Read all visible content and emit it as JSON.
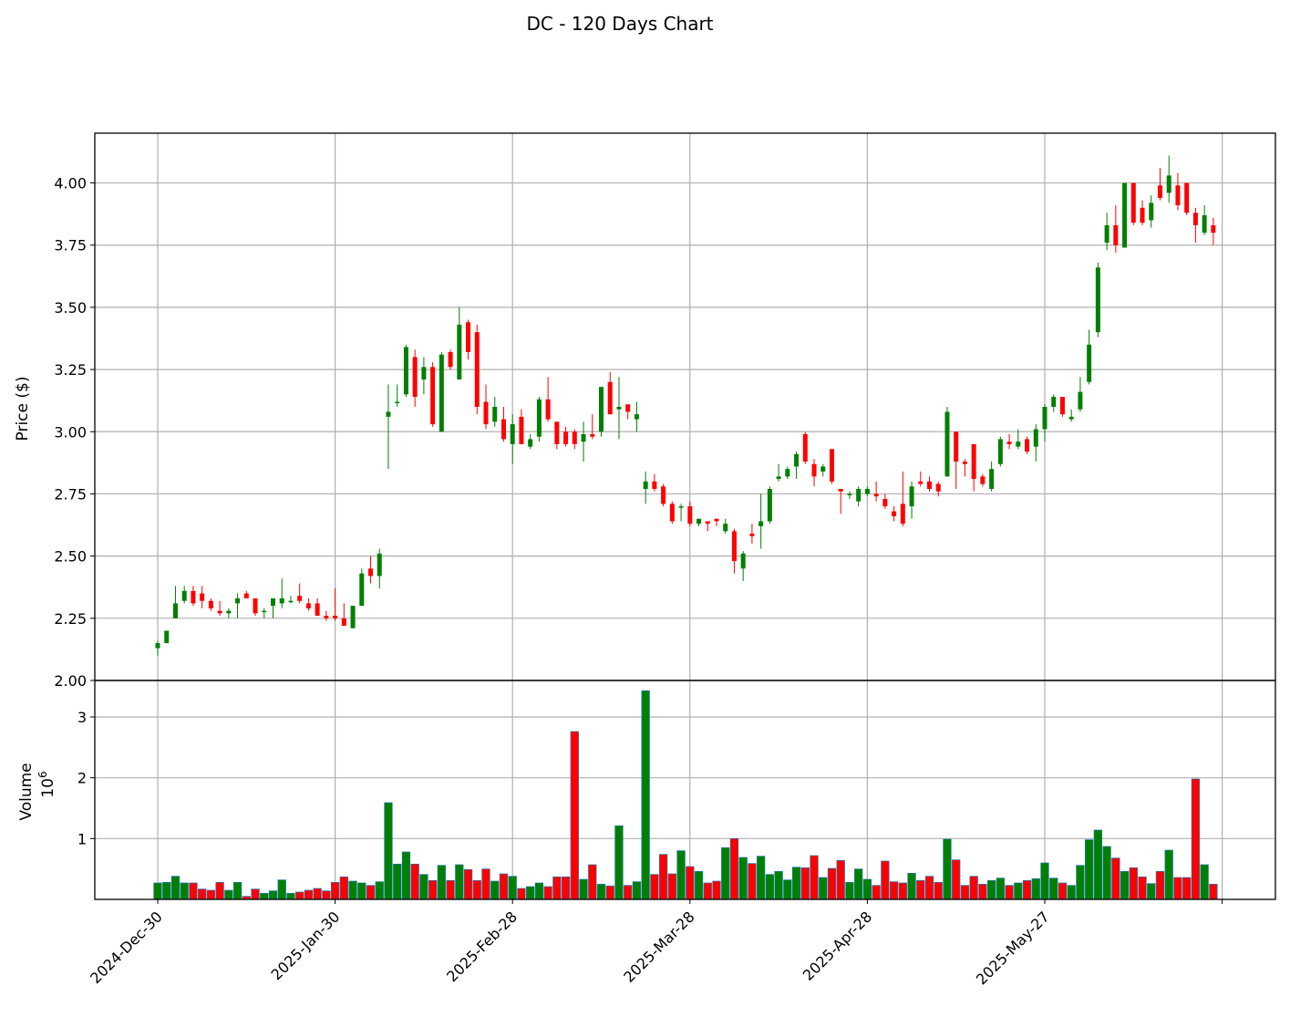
{
  "chart_data": {
    "type": "candlestick",
    "title": "DC - 120 Days Chart",
    "ylabel_price": "Price ($)",
    "ylabel_volume": "Volume",
    "volume_multiplier_label": "10^6",
    "volume_multiplier_base": "10",
    "volume_multiplier_exp": "6",
    "price_ylim": [
      2.0,
      4.2
    ],
    "price_ticks": [
      "2.00",
      "2.25",
      "2.50",
      "2.75",
      "3.00",
      "3.25",
      "3.50",
      "3.75",
      "4.00"
    ],
    "volume_ylim": [
      0,
      3.6
    ],
    "volume_ticks": [
      "1",
      "2",
      "3"
    ],
    "x_tick_labels": [
      {
        "label": "2024-Dec-30",
        "index": 0
      },
      {
        "label": "2025-Jan-30",
        "index": 20
      },
      {
        "label": "2025-Feb-28",
        "index": 40
      },
      {
        "label": "2025-Mar-28",
        "index": 60
      },
      {
        "label": "2025-Apr-28",
        "index": 80
      },
      {
        "label": "2025-May-27",
        "index": 100
      }
    ],
    "grid": true,
    "up_color": "#008000",
    "down_color": "#ff0000",
    "ohlc": [
      [
        2.13,
        2.16,
        2.1,
        2.15
      ],
      [
        2.15,
        2.2,
        2.15,
        2.2
      ],
      [
        2.25,
        2.38,
        2.25,
        2.31
      ],
      [
        2.32,
        2.38,
        2.31,
        2.36
      ],
      [
        2.36,
        2.38,
        2.3,
        2.31
      ],
      [
        2.35,
        2.38,
        2.29,
        2.32
      ],
      [
        2.32,
        2.33,
        2.28,
        2.29
      ],
      [
        2.28,
        2.32,
        2.26,
        2.27
      ],
      [
        2.27,
        2.29,
        2.25,
        2.28
      ],
      [
        2.31,
        2.35,
        2.25,
        2.33
      ],
      [
        2.35,
        2.36,
        2.33,
        2.33
      ],
      [
        2.33,
        2.33,
        2.26,
        2.27
      ],
      [
        2.28,
        2.29,
        2.25,
        2.28
      ],
      [
        2.3,
        2.33,
        2.25,
        2.33
      ],
      [
        2.31,
        2.41,
        2.29,
        2.33
      ],
      [
        2.32,
        2.34,
        2.31,
        2.32
      ],
      [
        2.34,
        2.39,
        2.31,
        2.32
      ],
      [
        2.31,
        2.33,
        2.28,
        2.29
      ],
      [
        2.31,
        2.33,
        2.26,
        2.26
      ],
      [
        2.26,
        2.28,
        2.24,
        2.25
      ],
      [
        2.26,
        2.37,
        2.24,
        2.25
      ],
      [
        2.25,
        2.31,
        2.22,
        2.22
      ],
      [
        2.21,
        2.3,
        2.21,
        2.3
      ],
      [
        2.3,
        2.45,
        2.3,
        2.43
      ],
      [
        2.45,
        2.5,
        2.39,
        2.42
      ],
      [
        2.42,
        2.53,
        2.37,
        2.51
      ],
      [
        3.06,
        3.19,
        2.85,
        3.08
      ],
      [
        3.12,
        3.19,
        3.1,
        3.12
      ],
      [
        3.15,
        3.35,
        3.14,
        3.34
      ],
      [
        3.3,
        3.33,
        3.1,
        3.14
      ],
      [
        3.21,
        3.3,
        3.15,
        3.26
      ],
      [
        3.26,
        3.28,
        3.02,
        3.03
      ],
      [
        3.0,
        3.32,
        3.0,
        3.31
      ],
      [
        3.32,
        3.33,
        3.25,
        3.26
      ],
      [
        3.21,
        3.5,
        3.21,
        3.43
      ],
      [
        3.44,
        3.45,
        3.29,
        3.32
      ],
      [
        3.4,
        3.43,
        3.07,
        3.1
      ],
      [
        3.12,
        3.19,
        3.01,
        3.03
      ],
      [
        3.04,
        3.14,
        3.02,
        3.1
      ],
      [
        3.05,
        3.1,
        2.96,
        2.97
      ],
      [
        2.95,
        3.07,
        2.87,
        3.03
      ],
      [
        3.06,
        3.09,
        2.95,
        2.95
      ],
      [
        2.94,
        2.99,
        2.93,
        2.97
      ],
      [
        2.98,
        3.14,
        2.96,
        3.13
      ],
      [
        3.13,
        3.22,
        3.04,
        3.05
      ],
      [
        3.04,
        3.04,
        2.93,
        2.95
      ],
      [
        3.0,
        3.02,
        2.94,
        2.95
      ],
      [
        3.0,
        3.01,
        2.93,
        2.95
      ],
      [
        2.96,
        3.04,
        2.88,
        2.99
      ],
      [
        2.99,
        3.07,
        2.97,
        2.98
      ],
      [
        3.0,
        3.18,
        2.98,
        3.18
      ],
      [
        3.2,
        3.24,
        3.07,
        3.07
      ],
      [
        3.09,
        3.22,
        2.97,
        3.1
      ],
      [
        3.11,
        3.11,
        3.05,
        3.08
      ],
      [
        3.05,
        3.12,
        3.0,
        3.07
      ],
      [
        2.77,
        2.84,
        2.71,
        2.8
      ],
      [
        2.8,
        2.83,
        2.76,
        2.77
      ],
      [
        2.78,
        2.79,
        2.7,
        2.71
      ],
      [
        2.71,
        2.72,
        2.63,
        2.64
      ],
      [
        2.7,
        2.71,
        2.64,
        2.7
      ],
      [
        2.7,
        2.72,
        2.62,
        2.63
      ],
      [
        2.63,
        2.65,
        2.62,
        2.65
      ],
      [
        2.64,
        2.64,
        2.6,
        2.63
      ],
      [
        2.65,
        2.65,
        2.62,
        2.64
      ],
      [
        2.6,
        2.65,
        2.59,
        2.63
      ],
      [
        2.6,
        2.61,
        2.43,
        2.48
      ],
      [
        2.45,
        2.52,
        2.4,
        2.51
      ],
      [
        2.59,
        2.63,
        2.55,
        2.58
      ],
      [
        2.62,
        2.75,
        2.53,
        2.64
      ],
      [
        2.64,
        2.78,
        2.63,
        2.77
      ],
      [
        2.81,
        2.87,
        2.8,
        2.82
      ],
      [
        2.82,
        2.86,
        2.81,
        2.85
      ],
      [
        2.86,
        2.92,
        2.81,
        2.91
      ],
      [
        2.99,
        3.0,
        2.87,
        2.88
      ],
      [
        2.87,
        2.89,
        2.78,
        2.82
      ],
      [
        2.84,
        2.87,
        2.82,
        2.86
      ],
      [
        2.93,
        2.93,
        2.79,
        2.8
      ],
      [
        2.77,
        2.77,
        2.67,
        2.76
      ],
      [
        2.75,
        2.76,
        2.73,
        2.75
      ],
      [
        2.72,
        2.78,
        2.7,
        2.77
      ],
      [
        2.75,
        2.78,
        2.74,
        2.77
      ],
      [
        2.75,
        2.8,
        2.72,
        2.74
      ],
      [
        2.73,
        2.75,
        2.69,
        2.7
      ],
      [
        2.68,
        2.7,
        2.64,
        2.66
      ],
      [
        2.71,
        2.84,
        2.62,
        2.63
      ],
      [
        2.7,
        2.8,
        2.65,
        2.78
      ],
      [
        2.8,
        2.84,
        2.78,
        2.79
      ],
      [
        2.8,
        2.82,
        2.76,
        2.77
      ],
      [
        2.79,
        2.8,
        2.74,
        2.76
      ],
      [
        2.82,
        3.1,
        2.82,
        3.08
      ],
      [
        3.0,
        3.0,
        2.77,
        2.88
      ],
      [
        2.88,
        2.89,
        2.82,
        2.87
      ],
      [
        2.95,
        2.95,
        2.76,
        2.81
      ],
      [
        2.82,
        2.83,
        2.78,
        2.79
      ],
      [
        2.77,
        2.88,
        2.76,
        2.85
      ],
      [
        2.87,
        2.98,
        2.86,
        2.97
      ],
      [
        2.96,
        2.99,
        2.93,
        2.95
      ],
      [
        2.94,
        3.01,
        2.93,
        2.96
      ],
      [
        2.97,
        2.98,
        2.91,
        2.92
      ],
      [
        2.94,
        3.03,
        2.88,
        3.01
      ],
      [
        3.01,
        3.11,
        2.96,
        3.1
      ],
      [
        3.1,
        3.15,
        3.08,
        3.14
      ],
      [
        3.14,
        3.14,
        3.06,
        3.07
      ],
      [
        3.05,
        3.09,
        3.04,
        3.06
      ],
      [
        3.09,
        3.22,
        3.08,
        3.16
      ],
      [
        3.2,
        3.41,
        3.19,
        3.35
      ],
      [
        3.4,
        3.68,
        3.38,
        3.66
      ],
      [
        3.76,
        3.88,
        3.73,
        3.83
      ],
      [
        3.83,
        3.91,
        3.72,
        3.75
      ],
      [
        3.74,
        4.0,
        3.74,
        4.0
      ],
      [
        4.0,
        4.0,
        3.83,
        3.84
      ],
      [
        3.9,
        3.93,
        3.83,
        3.84
      ],
      [
        3.85,
        3.95,
        3.82,
        3.92
      ],
      [
        3.99,
        4.06,
        3.93,
        3.94
      ],
      [
        3.96,
        4.11,
        3.92,
        4.03
      ],
      [
        3.99,
        4.04,
        3.89,
        3.91
      ],
      [
        4.0,
        4.0,
        3.87,
        3.88
      ],
      [
        3.88,
        3.9,
        3.76,
        3.83
      ],
      [
        3.8,
        3.91,
        3.79,
        3.87
      ],
      [
        3.83,
        3.86,
        3.75,
        3.8
      ]
    ],
    "volume": [
      0.27,
      0.28,
      0.38,
      0.27,
      0.27,
      0.17,
      0.15,
      0.28,
      0.15,
      0.28,
      0.05,
      0.17,
      0.1,
      0.14,
      0.32,
      0.1,
      0.12,
      0.15,
      0.18,
      0.14,
      0.28,
      0.37,
      0.3,
      0.27,
      0.23,
      0.29,
      1.59,
      0.58,
      0.78,
      0.58,
      0.41,
      0.31,
      0.56,
      0.31,
      0.57,
      0.49,
      0.31,
      0.5,
      0.3,
      0.42,
      0.38,
      0.18,
      0.21,
      0.27,
      0.21,
      0.37,
      0.37,
      2.76,
      0.33,
      0.57,
      0.25,
      0.22,
      1.21,
      0.23,
      0.29,
      3.43,
      0.41,
      0.74,
      0.42,
      0.8,
      0.54,
      0.46,
      0.27,
      0.3,
      0.85,
      1.0,
      0.69,
      0.59,
      0.71,
      0.41,
      0.46,
      0.32,
      0.53,
      0.52,
      0.72,
      0.36,
      0.51,
      0.64,
      0.28,
      0.5,
      0.33,
      0.23,
      0.63,
      0.29,
      0.27,
      0.43,
      0.31,
      0.38,
      0.28,
      0.99,
      0.65,
      0.23,
      0.38,
      0.25,
      0.31,
      0.35,
      0.23,
      0.27,
      0.31,
      0.34,
      0.6,
      0.35,
      0.27,
      0.23,
      0.56,
      0.98,
      1.14,
      0.87,
      0.68,
      0.46,
      0.52,
      0.37,
      0.26,
      0.46,
      0.81,
      0.36,
      0.36,
      1.98,
      0.57,
      0.25
    ]
  }
}
